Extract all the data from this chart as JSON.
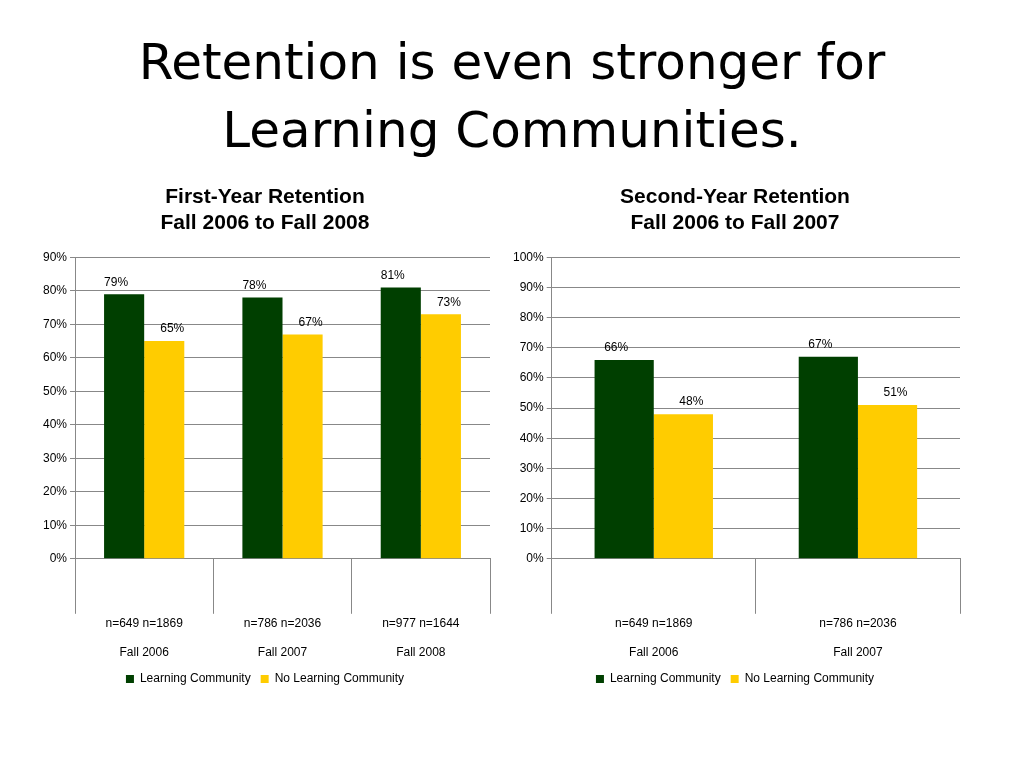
{
  "chart_data": [
    {
      "type": "bar",
      "title": "First-Year Retention\nFall 2006 to Fall 2008",
      "categories": [
        "Fall 2006",
        "Fall 2007",
        "Fall 2008"
      ],
      "series": [
        {
          "name": "Learning Community",
          "color": "#003f00",
          "values": [
            79,
            78,
            81
          ],
          "value_labels": [
            "79%",
            "78%",
            "81%"
          ]
        },
        {
          "name": "No Learning Community",
          "color": "#ffcc00",
          "values": [
            65,
            67,
            73
          ],
          "value_labels": [
            "65%",
            "67%",
            "73%"
          ]
        }
      ],
      "ylim": [
        0,
        90
      ],
      "yticks": [
        {
          "value": 0,
          "label": "0%"
        },
        {
          "value": 10,
          "label": "10%"
        },
        {
          "value": 20,
          "label": "20%"
        },
        {
          "value": 30,
          "label": "30%"
        },
        {
          "value": 40,
          "label": "40%"
        },
        {
          "value": 50,
          "label": "50%"
        },
        {
          "value": 60,
          "label": "60%"
        },
        {
          "value": 70,
          "label": "70%"
        },
        {
          "value": 80,
          "label": "80%"
        },
        {
          "value": 90,
          "label": "90%"
        }
      ],
      "grid": "y",
      "legend": "bottom",
      "annotations": [
        "Retention is even stronger for Learning Communities.",
        "n=649 n=1869",
        "n=786 n=2036",
        "n=977 n=1644"
      ]
    },
    {
      "type": "bar",
      "title": "Second-Year Retention\nFall 2006 to Fall 2007",
      "categories": [
        "Fall 2006",
        "Fall 2007"
      ],
      "series": [
        {
          "name": "Learning Community",
          "color": "#003f00",
          "values": [
            66,
            67
          ],
          "value_labels": [
            "66%",
            "67%"
          ]
        },
        {
          "name": "No Learning Community",
          "color": "#ffcc00",
          "values": [
            48,
            51
          ],
          "value_labels": [
            "48%",
            "51%"
          ]
        }
      ],
      "ylim": [
        0,
        100
      ],
      "yticks": [
        {
          "value": 0,
          "label": "0%"
        },
        {
          "value": 10,
          "label": "10%"
        },
        {
          "value": 20,
          "label": "20%"
        },
        {
          "value": 30,
          "label": "30%"
        },
        {
          "value": 40,
          "label": "40%"
        },
        {
          "value": 50,
          "label": "50%"
        },
        {
          "value": 60,
          "label": "60%"
        },
        {
          "value": 70,
          "label": "70%"
        },
        {
          "value": 80,
          "label": "80%"
        },
        {
          "value": 90,
          "label": "90%"
        },
        {
          "value": 100,
          "label": "100%"
        }
      ],
      "grid": "y",
      "legend": "bottom",
      "annotations": [
        "n=649 n=1869",
        "n=786 n=2036"
      ]
    }
  ]
}
